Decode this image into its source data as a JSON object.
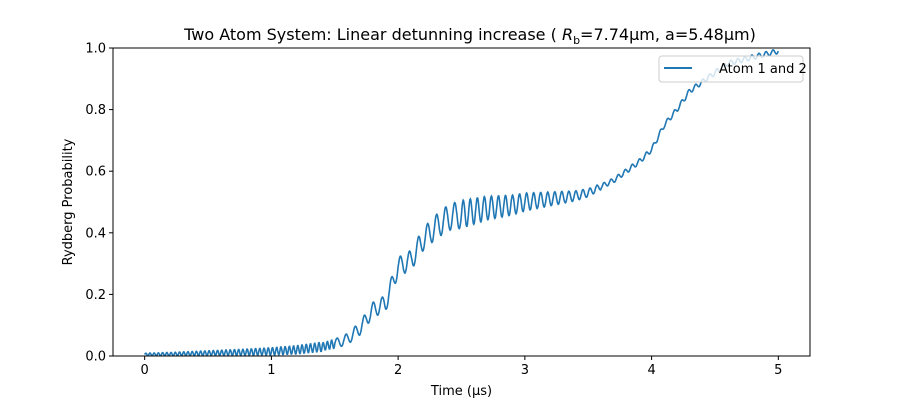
{
  "chart_data": {
    "type": "line",
    "title_main": "Two Atom System: Linear detunning increase ( ",
    "title_symbol": "R",
    "title_subscript": "b",
    "title_rest": "=7.74μm, a=5.48μm)",
    "xlabel": "Time (μs)",
    "ylabel": "Rydberg Probability",
    "xlim": [
      -0.25,
      5.25
    ],
    "ylim": [
      0.0,
      1.0
    ],
    "xticks": [
      0,
      1,
      2,
      3,
      4,
      5
    ],
    "xtick_labels": [
      "0",
      "1",
      "2",
      "3",
      "4",
      "5"
    ],
    "yticks": [
      0.0,
      0.2,
      0.4,
      0.6,
      0.8,
      1.0
    ],
    "ytick_labels": [
      "0.0",
      "0.2",
      "0.4",
      "0.6",
      "0.8",
      "1.0"
    ],
    "grid": false,
    "legend_position": "top-right",
    "series": [
      {
        "name": "Atom 1 and 2",
        "color": "#1f77b4",
        "x": [
          0.0,
          0.2,
          0.4,
          0.6,
          0.8,
          1.0,
          1.2,
          1.4,
          1.5,
          1.6,
          1.7,
          1.8,
          1.9,
          2.0,
          2.1,
          2.2,
          2.3,
          2.4,
          2.5,
          2.6,
          2.7,
          2.8,
          2.9,
          3.0,
          3.2,
          3.4,
          3.5,
          3.6,
          3.7,
          3.8,
          3.9,
          4.0,
          4.1,
          4.2,
          4.3,
          4.4,
          4.5,
          4.6,
          4.7,
          4.8,
          4.9,
          5.0
        ],
        "y": [
          0.005,
          0.006,
          0.008,
          0.01,
          0.012,
          0.015,
          0.02,
          0.03,
          0.04,
          0.055,
          0.09,
          0.15,
          0.17,
          0.29,
          0.31,
          0.38,
          0.42,
          0.45,
          0.46,
          0.47,
          0.48,
          0.485,
          0.49,
          0.5,
          0.51,
          0.52,
          0.53,
          0.55,
          0.57,
          0.6,
          0.63,
          0.67,
          0.75,
          0.8,
          0.86,
          0.89,
          0.92,
          0.95,
          0.96,
          0.97,
          0.98,
          0.99
        ]
      }
    ]
  }
}
